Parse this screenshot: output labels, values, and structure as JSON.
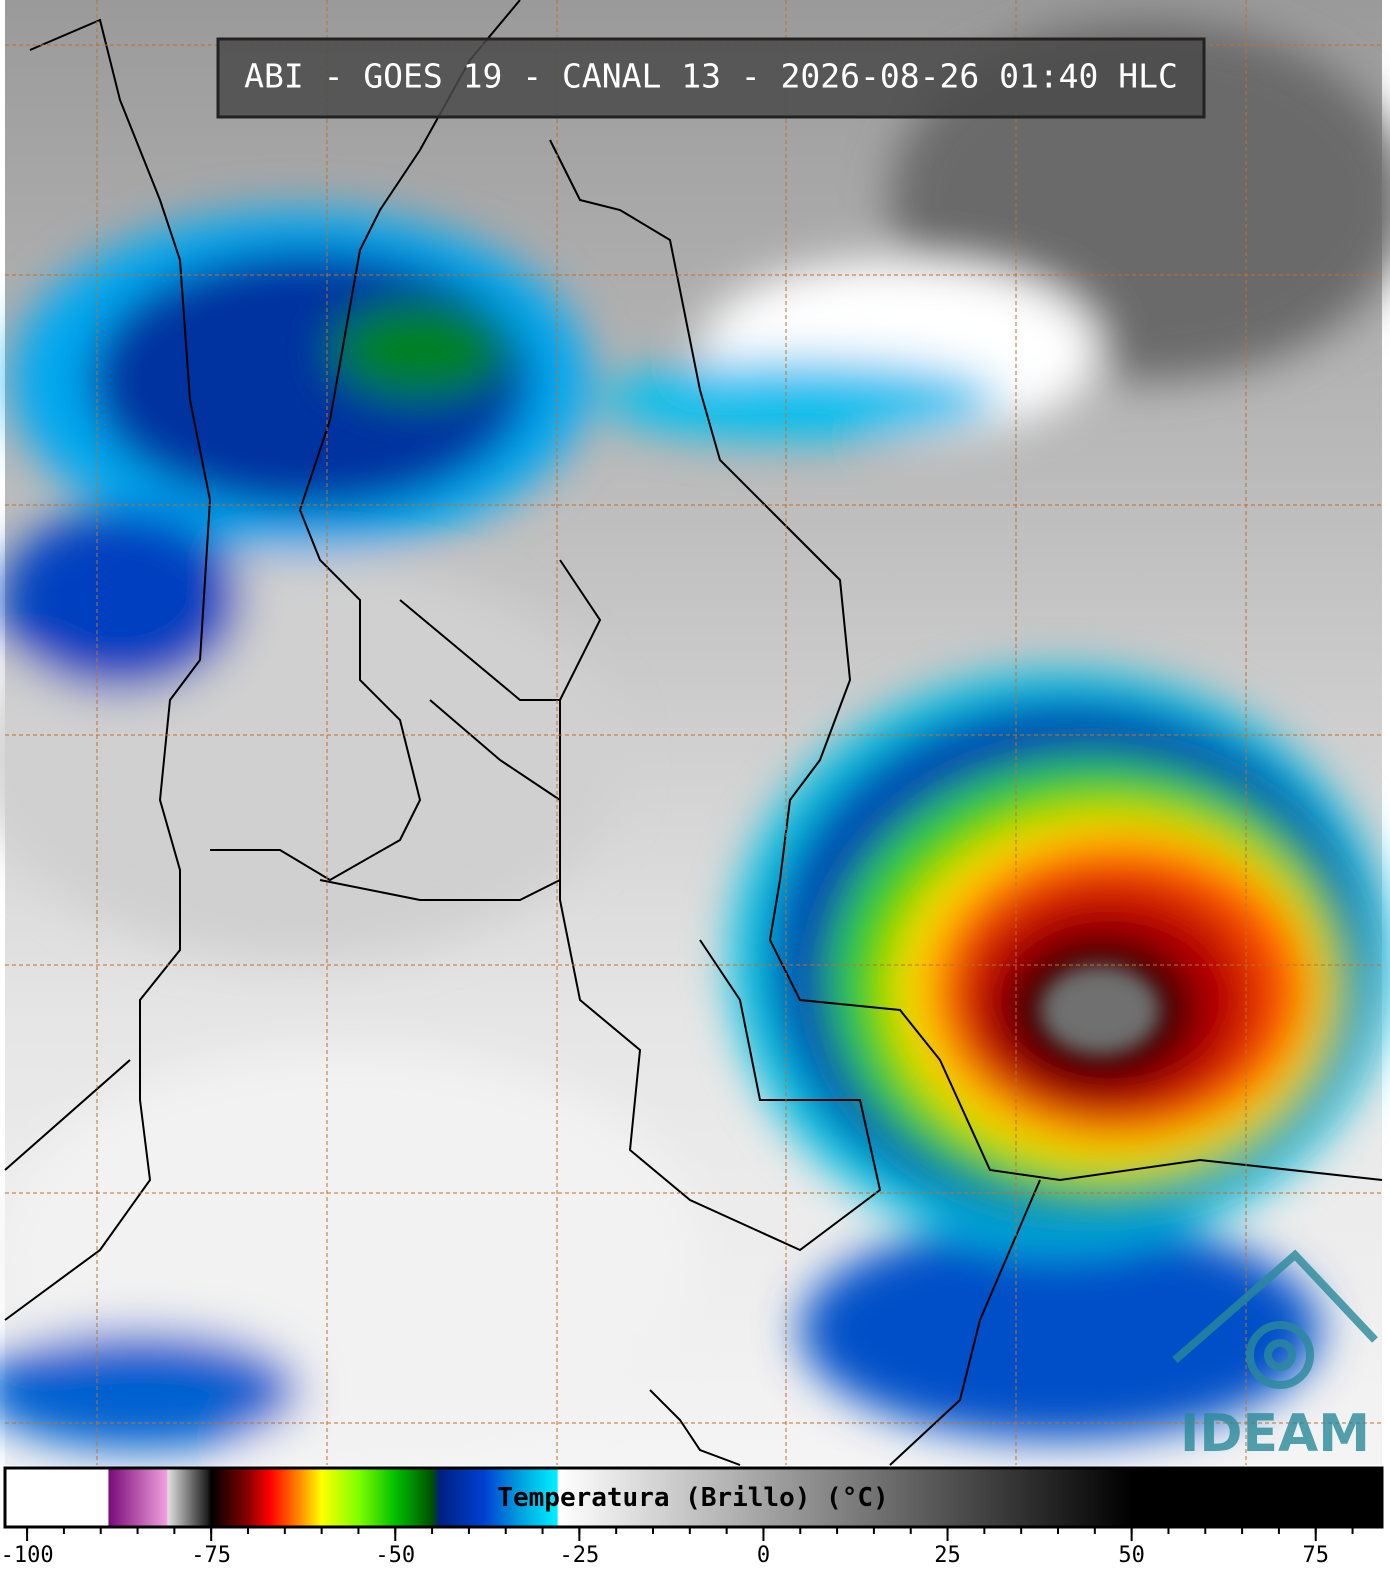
{
  "title": "ABI - GOES 19 - CANAL 13 - 2026-08-26 01:40 HLC",
  "logo": "IDEAM",
  "colorbar": {
    "label": "Temperatura (Brillo) (°C)",
    "range": [
      -103,
      84
    ],
    "ticks": [
      -100,
      -75,
      -50,
      -25,
      0,
      25,
      50,
      75
    ],
    "minor_step": 5,
    "color_stops": [
      {
        "value": -103,
        "color": "#ffffff"
      },
      {
        "value": -89,
        "color": "#ffffff"
      },
      {
        "value": -88.9,
        "color": "#7a0a7a"
      },
      {
        "value": -81,
        "color": "#f2a0e0"
      },
      {
        "value": -80.9,
        "color": "#e0e0e0"
      },
      {
        "value": -75.5,
        "color": "#202020"
      },
      {
        "value": -75,
        "color": "#000000"
      },
      {
        "value": -70,
        "color": "#8a0000"
      },
      {
        "value": -67,
        "color": "#ff0000"
      },
      {
        "value": -63,
        "color": "#ff8c00"
      },
      {
        "value": -60,
        "color": "#ffff00"
      },
      {
        "value": -55,
        "color": "#80ff00"
      },
      {
        "value": -50,
        "color": "#00c000"
      },
      {
        "value": -45,
        "color": "#005000"
      },
      {
        "value": -44,
        "color": "#002080"
      },
      {
        "value": -38,
        "color": "#0040d0"
      },
      {
        "value": -33,
        "color": "#00a0e0"
      },
      {
        "value": -28,
        "color": "#00f0ff"
      },
      {
        "value": -27.9,
        "color": "#ffffff"
      },
      {
        "value": 50,
        "color": "#000000"
      },
      {
        "value": 84,
        "color": "#000000"
      }
    ]
  }
}
